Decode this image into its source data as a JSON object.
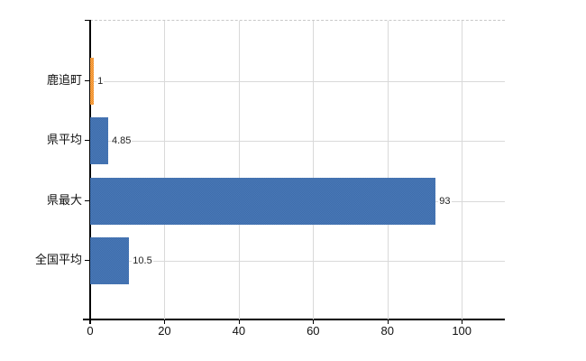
{
  "chart_data": {
    "type": "bar",
    "orientation": "horizontal",
    "title": "",
    "xlabel": "",
    "ylabel": "",
    "categories": [
      "鹿追町",
      "県平均",
      "県最大",
      "全国平均"
    ],
    "values": [
      1,
      4.85,
      93,
      10.5
    ],
    "value_labels": [
      "1",
      "4.85",
      "93",
      "10.5"
    ],
    "x_ticks": [
      0,
      20,
      40,
      60,
      80,
      100
    ],
    "xlim": [
      0,
      111.6
    ],
    "grid": true,
    "legend": false,
    "bar_styles": [
      "orange",
      "blue",
      "blue",
      "blue"
    ],
    "highlighted_category": "鹿追町"
  },
  "colors": {
    "bar_blue": "#3e6da9",
    "bar_blue_alt": "#4978b9",
    "bar_orange": "#ee8822",
    "bar_orange_alt": "#f9ad55",
    "axis": "#000000",
    "gridline": "#d9d9d9",
    "top_border": "#c9c9c9",
    "text": "#111111"
  }
}
